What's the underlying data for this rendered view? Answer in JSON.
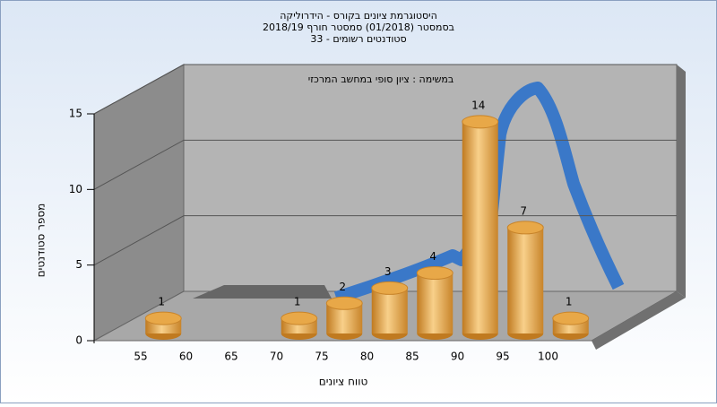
{
  "chart_data": {
    "type": "bar",
    "title": [
      "היסטוגרמת ציונים בקורס - הידרוליקה",
      "בסמסטר  (01/2018)  סמסטר חורף 2018/19",
      "סטודנטים רשומים - 33"
    ],
    "annotation": "במשימה : ציון סופי במחשב המרכזי",
    "x_label": "טווח ציונים",
    "y_label": "מספר סטודנטים",
    "categories": [
      55,
      60,
      65,
      70,
      75,
      80,
      85,
      90,
      95,
      100
    ],
    "values": [
      1,
      0,
      0,
      1,
      2,
      3,
      4,
      14,
      7,
      1
    ],
    "color": "#e8a848",
    "ylim": [
      0,
      15
    ],
    "yticks": [
      0,
      5,
      10,
      15
    ],
    "grid": true
  }
}
